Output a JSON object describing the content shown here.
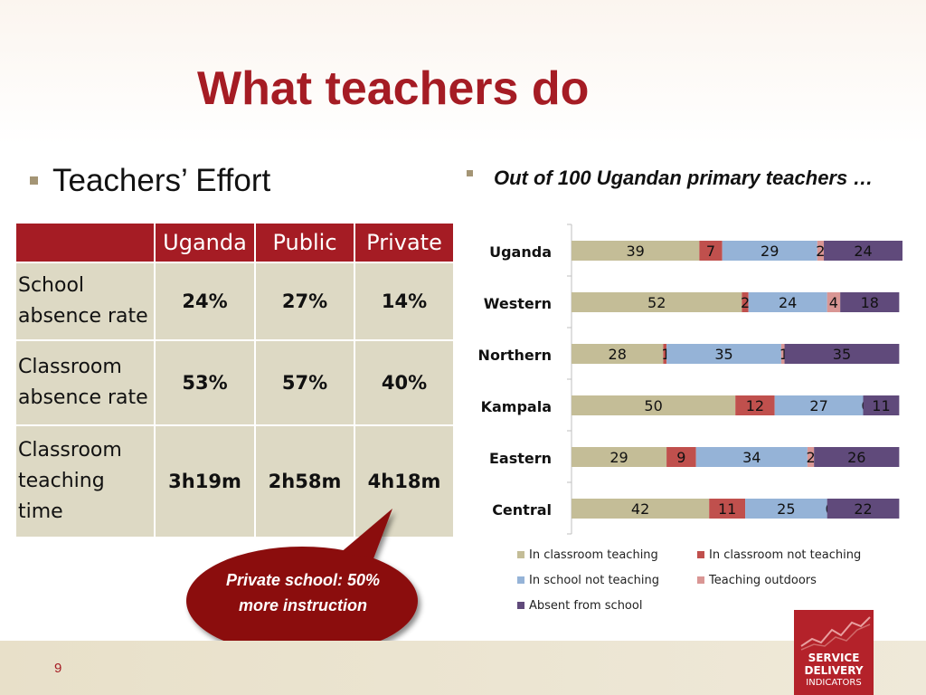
{
  "slide": {
    "title": "What teachers do",
    "left_bullet": "Teachers’ Effort",
    "right_bullet": "Out of 100 Ugandan primary teachers …",
    "page_number": "9"
  },
  "table": {
    "headers": [
      "",
      "Uganda",
      "Public",
      "Private"
    ],
    "rows": [
      {
        "label": "School absence rate",
        "values": [
          "24%",
          "27%",
          "14%"
        ]
      },
      {
        "label": "Classroom absence rate",
        "values": [
          "53%",
          "57%",
          "40%"
        ]
      },
      {
        "label": "Classroom teaching time",
        "values": [
          "3h19m",
          "2h58m",
          "4h18m"
        ]
      }
    ]
  },
  "callout": {
    "text": "Private school: 50% more instruction",
    "color": "#8b0f10"
  },
  "logo": {
    "line1": "SERVICE",
    "line2": "DELIVERY",
    "line3": "INDICATORS"
  },
  "chart_data": {
    "type": "bar",
    "orientation": "horizontal",
    "stacked": true,
    "categories": [
      "Uganda",
      "Western",
      "Northern",
      "Kampala",
      "Eastern",
      "Central"
    ],
    "series": [
      {
        "name": "In classroom  teaching",
        "color": "#c4bd97",
        "values": [
          39,
          52,
          28,
          50,
          29,
          42
        ]
      },
      {
        "name": "In classroom  not teaching",
        "color": "#c0504d",
        "values": [
          7,
          2,
          1,
          12,
          9,
          11
        ]
      },
      {
        "name": "In school not teaching",
        "color": "#95b3d7",
        "values": [
          29,
          24,
          35,
          27,
          34,
          25
        ]
      },
      {
        "name": "Teaching outdoors",
        "color": "#d99694",
        "values": [
          2,
          4,
          1,
          0,
          2,
          0
        ]
      },
      {
        "name": "Absent from school",
        "color": "#604a7b",
        "values": [
          24,
          18,
          35,
          11,
          26,
          22
        ]
      }
    ],
    "legend_position": "bottom",
    "grid": false
  }
}
